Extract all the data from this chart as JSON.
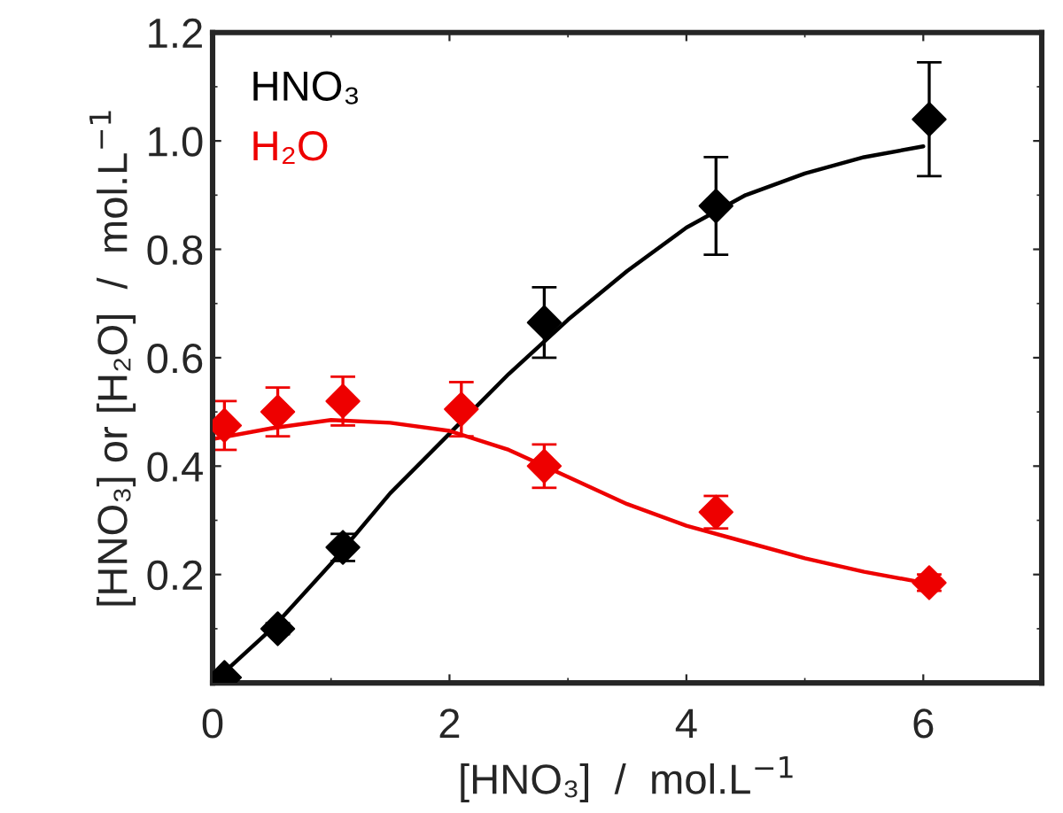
{
  "chart_data": {
    "type": "scatter",
    "xlabel": "[HNO₃]  /  mol.L$^{−1}$",
    "ylabel": "[HNO₃] or [H₂O]  /  mol.L$^{−1}$",
    "xlim": [
      0,
      7
    ],
    "xticks": [
      0,
      2,
      4,
      6
    ],
    "ylim": [
      0,
      1.2
    ],
    "yticks": [
      0.2,
      0.4,
      0.6,
      0.8,
      {
        "value": 1,
        "label": "1.0"
      },
      1.2
    ],
    "legend": "top left",
    "grid": false,
    "series": [
      {
        "name": "HNO₃",
        "marker": "diamond",
        "color": "#000000",
        "x": [
          0.1,
          0.55,
          1.1,
          2.1,
          2.8,
          4.25,
          6.05
        ],
        "values": [
          0.01,
          0.1,
          0.25,
          null,
          0.665,
          0.88,
          1.04
        ],
        "errors": [
          null,
          0.01,
          0.025,
          null,
          0.065,
          0.09,
          0.105
        ]
      },
      {
        "name": "H₂O",
        "marker": "diamond",
        "color": "#ee0000",
        "x": [
          0.1,
          0.55,
          1.1,
          2.1,
          2.8,
          4.25,
          6.05
        ],
        "values": [
          0.475,
          0.5,
          0.52,
          0.505,
          0.4,
          0.315,
          0.185
        ],
        "errors": [
          0.045,
          0.045,
          0.045,
          0.05,
          0.04,
          0.03,
          0.015
        ]
      },
      {
        "type": "line",
        "color": "#000000",
        "x": [
          0,
          0.5,
          1,
          1.5,
          2,
          2.5,
          3,
          3.5,
          4,
          4.5,
          5,
          5.5,
          6
        ],
        "values": [
          0,
          0.1,
          0.22,
          0.35,
          0.46,
          0.57,
          0.67,
          0.76,
          0.84,
          0.9,
          0.94,
          0.97,
          0.99
        ]
      },
      {
        "type": "line",
        "color": "#ee0000",
        "x": [
          0,
          0.5,
          1,
          1.5,
          2,
          2.5,
          3,
          3.5,
          4,
          4.5,
          5,
          5.5,
          6
        ],
        "values": [
          0.45,
          0.47,
          0.485,
          0.48,
          0.465,
          0.43,
          0.38,
          0.33,
          0.29,
          0.26,
          0.23,
          0.205,
          0.185
        ]
      }
    ]
  }
}
